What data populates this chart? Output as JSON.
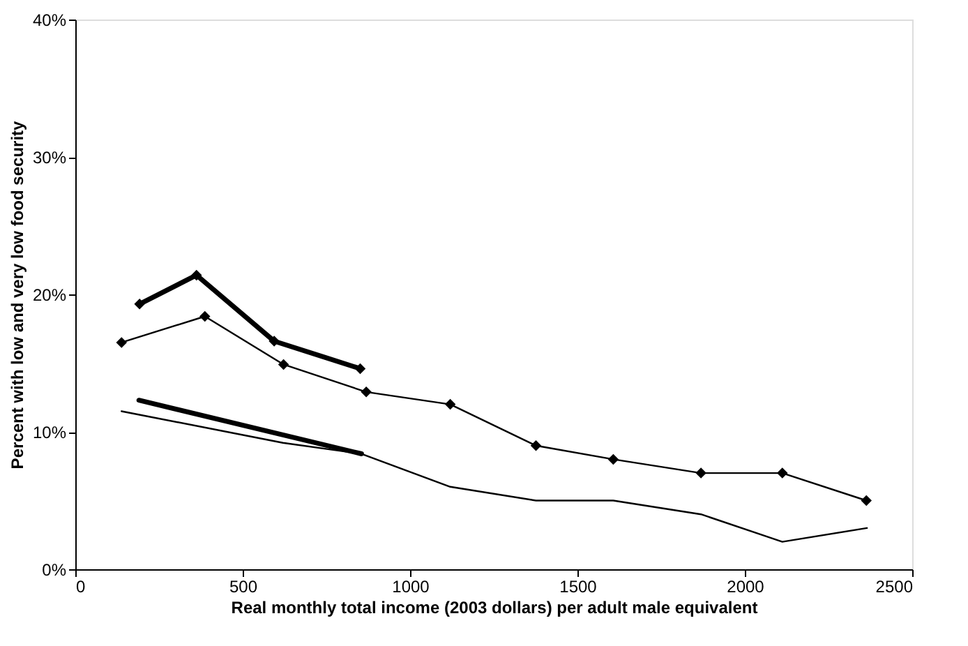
{
  "chart_data": {
    "type": "line",
    "xlabel": "Real monthly total income (2003 dollars) per adult male equivalent",
    "ylabel": "Percent with low and very low food security",
    "xlim": [
      0,
      2500
    ],
    "xticks": [
      0,
      500,
      1000,
      1500,
      2000,
      2500
    ],
    "ylim": [
      0,
      40
    ],
    "yticks": [
      {
        "value": 0,
        "label": "0%"
      },
      {
        "value": 10,
        "label": "10%"
      },
      {
        "value": 20,
        "label": "20%"
      },
      {
        "value": 30,
        "label": "30%"
      },
      {
        "value": 40,
        "label": "40%"
      }
    ],
    "grid": false,
    "series": [
      {
        "color": "#000000",
        "marker": "diamond",
        "x": [
          192,
          362,
          594,
          851
        ],
        "values": [
          19.3,
          21.4,
          16.6,
          14.6
        ]
      },
      {
        "color": "#000000",
        "marker": "diamond",
        "x": [
          138,
          387,
          622,
          869,
          1120,
          1376,
          1607,
          1869,
          2112,
          2363
        ],
        "values": [
          16.5,
          18.4,
          14.9,
          12.9,
          12.0,
          9.0,
          8.0,
          7.0,
          7.0,
          5.0
        ]
      },
      {
        "color": "#000000",
        "marker": "none",
        "x": [
          190,
          855
        ],
        "values": [
          12.3,
          8.4
        ]
      },
      {
        "color": "#000000",
        "marker": "none",
        "x": [
          138,
          620,
          855,
          1120,
          1376,
          1607,
          1869,
          2112,
          2365
        ],
        "values": [
          11.5,
          9.2,
          8.4,
          6.0,
          5.0,
          5.0,
          4.0,
          2.0,
          3.0
        ]
      }
    ]
  }
}
